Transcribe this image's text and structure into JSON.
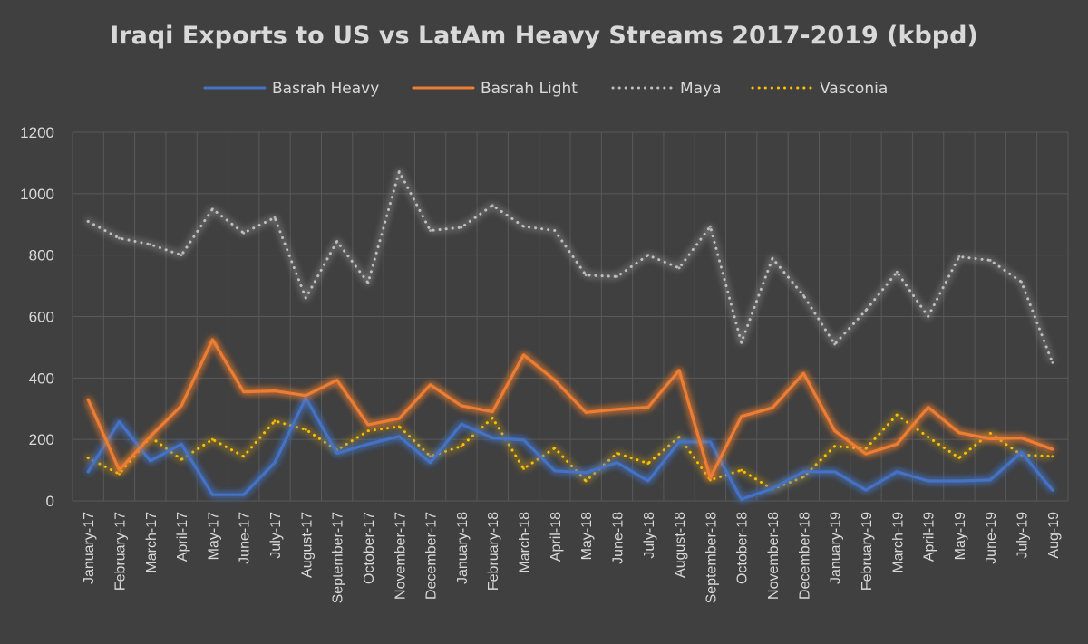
{
  "chart_data": {
    "type": "line",
    "title": "Iraqi Exports to US vs LatAm Heavy Streams 2017-2019 (kbpd)",
    "xlabel": "",
    "ylabel": "",
    "ylim": [
      0,
      1200
    ],
    "yticks": [
      0,
      200,
      400,
      600,
      800,
      1000,
      1200
    ],
    "grid": true,
    "legend_position": "top",
    "categories": [
      "January-17",
      "February-17",
      "March-17",
      "April-17",
      "May-17",
      "June-17",
      "July-17",
      "August-17",
      "September-17",
      "October-17",
      "November-17",
      "December-17",
      "January-18",
      "February-18",
      "March-18",
      "April-18",
      "May-18",
      "June-18",
      "July-18",
      "August-18",
      "September-18",
      "October-18",
      "November-18",
      "December-18",
      "January-19",
      "February-19",
      "March-19",
      "April-19",
      "May-19",
      "June-19",
      "July-19",
      "Aug-19"
    ],
    "series": [
      {
        "name": "Basrah Heavy",
        "color": "#4472c4",
        "style": "solid",
        "values": [
          95,
          258,
          130,
          185,
          20,
          20,
          125,
          335,
          155,
          185,
          210,
          125,
          250,
          205,
          198,
          98,
          92,
          125,
          65,
          192,
          192,
          5,
          40,
          95,
          95,
          35,
          95,
          65,
          65,
          68,
          158,
          35
        ]
      },
      {
        "name": "Basrah Light",
        "color": "#ed7d31",
        "style": "solid",
        "values": [
          330,
          100,
          210,
          310,
          525,
          355,
          358,
          343,
          393,
          248,
          268,
          378,
          310,
          290,
          475,
          393,
          288,
          298,
          305,
          425,
          75,
          275,
          303,
          415,
          228,
          153,
          185,
          305,
          222,
          202,
          205,
          168
        ]
      },
      {
        "name": "Maya",
        "color": "#bfbfbf",
        "style": "dotted",
        "values": [
          910,
          855,
          835,
          800,
          950,
          872,
          922,
          660,
          845,
          710,
          1072,
          880,
          890,
          962,
          893,
          880,
          735,
          730,
          800,
          758,
          893,
          515,
          790,
          668,
          510,
          620,
          745,
          600,
          795,
          783,
          713,
          450
        ]
      },
      {
        "name": "Vasconia",
        "color": "#ffc000",
        "style": "dotted",
        "values": [
          140,
          88,
          208,
          135,
          200,
          145,
          260,
          232,
          165,
          228,
          242,
          145,
          178,
          270,
          105,
          172,
          65,
          155,
          122,
          208,
          68,
          100,
          38,
          78,
          178,
          170,
          280,
          208,
          140,
          220,
          150,
          145
        ]
      }
    ]
  }
}
